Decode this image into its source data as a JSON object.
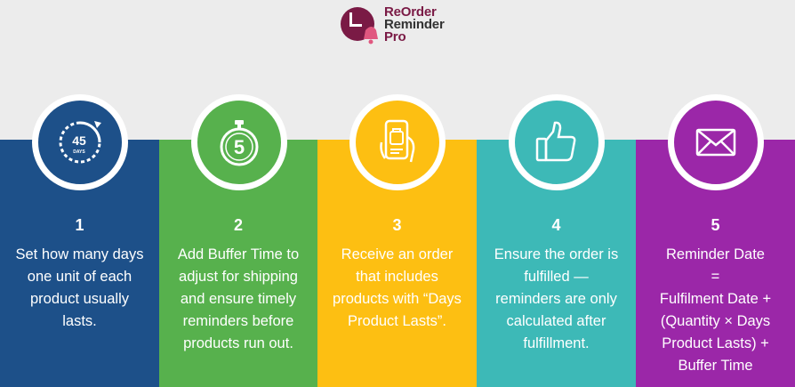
{
  "brand": {
    "line1": "ReOrder",
    "line2": "Reminder",
    "line3": "Pro",
    "color_primary": "#7a1a45"
  },
  "steps": [
    {
      "number": "1",
      "icon": "countdown-45-days-icon",
      "icon_label": "45",
      "icon_sublabel": "DAYS",
      "color": "#1d5089",
      "lines": [
        "Set how many days",
        "one unit of each",
        "product usually",
        "lasts."
      ]
    },
    {
      "number": "2",
      "icon": "stopwatch-5-icon",
      "icon_label": "5",
      "color": "#57b14d",
      "lines": [
        "Add Buffer Time to",
        "adjust for shipping",
        "and ensure timely",
        "reminders before",
        "products run out."
      ]
    },
    {
      "number": "3",
      "icon": "phone-order-icon",
      "color": "#fdbf12",
      "lines": [
        "Receive an order",
        "that includes",
        "products with “Days",
        "Product Lasts”."
      ]
    },
    {
      "number": "4",
      "icon": "thumbs-up-icon",
      "color": "#3db9b7",
      "lines": [
        "Ensure the order is",
        "fulfilled —",
        "reminders are only",
        "calculated after",
        "fulfillment."
      ]
    },
    {
      "number": "5",
      "icon": "envelope-icon",
      "color": "#9b27a8",
      "lines": [
        "Reminder Date",
        "=",
        "Fulfilment Date +",
        "(Quantity × Days",
        "Product Lasts)   +",
        "Buffer Time"
      ]
    }
  ]
}
